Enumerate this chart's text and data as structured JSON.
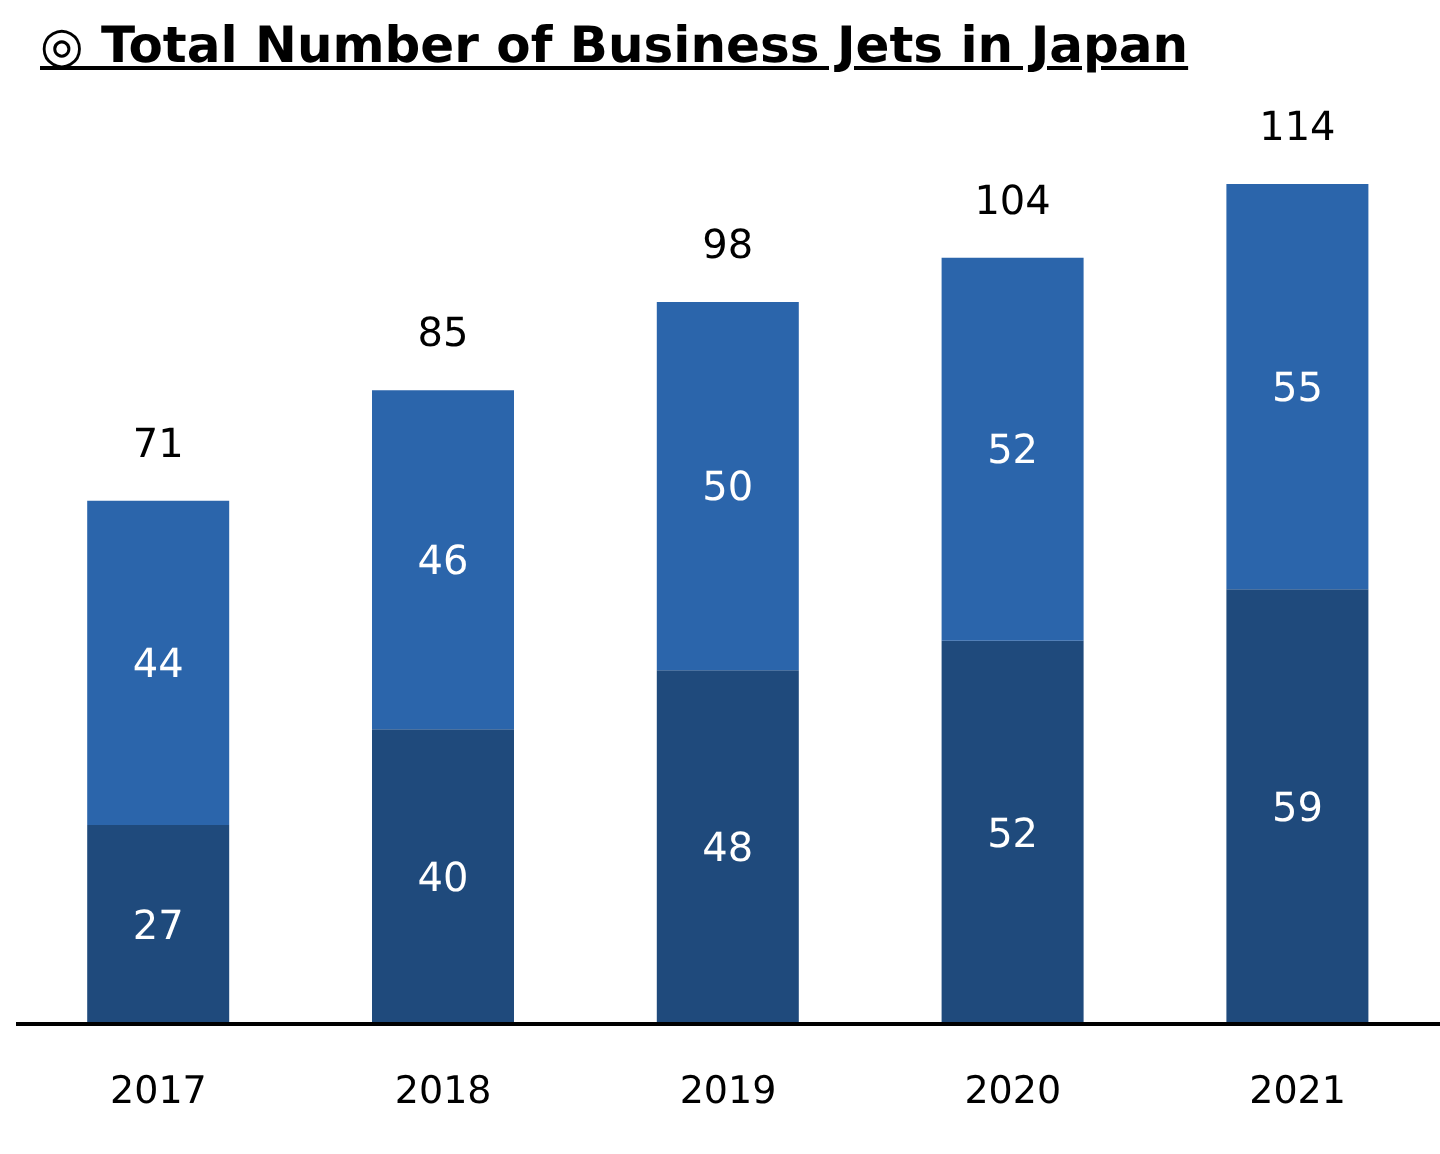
{
  "chart_data": {
    "type": "bar",
    "title": "◎ Total Number of Business Jets in Japan",
    "categories": [
      "2017",
      "2018",
      "2019",
      "2020",
      "2021"
    ],
    "stacked": true,
    "data_labels": true,
    "series": [
      {
        "color": "#1f4a7c",
        "values": [
          27,
          40,
          48,
          52,
          59
        ]
      },
      {
        "color": "#2b65ab",
        "values": [
          44,
          46,
          50,
          52,
          55
        ]
      }
    ],
    "totals": [
      "71",
      "85",
      "98",
      "104",
      "114"
    ]
  }
}
